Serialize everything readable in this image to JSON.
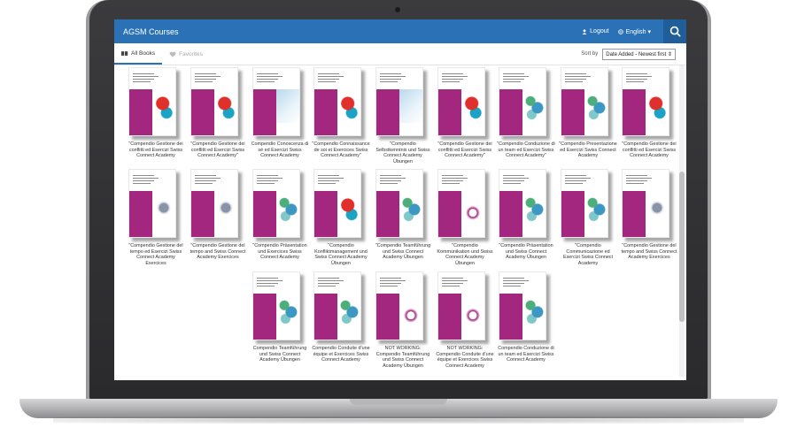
{
  "app": {
    "title": "AGSM Courses"
  },
  "header": {
    "logout_label": "Logout",
    "language_label": "English ▾"
  },
  "tabs": [
    {
      "label": "All Books"
    },
    {
      "label": "Favorites"
    }
  ],
  "sort": {
    "label": "Sort by",
    "selected": "Date Added - Newest first ⇕"
  },
  "books": [
    {
      "title": "\"Compendio Gestione dei conflitti ed Esercizi Swiss Connect Academy",
      "art": "red"
    },
    {
      "title": "\"Compendio Gestione dei conflitti ed Esercizi Swiss Connect Academy\"",
      "art": "red"
    },
    {
      "title": "Compendio Conoscenza di sé ed Esercizi Swiss Connect Academy",
      "art": "blue"
    },
    {
      "title": "\"Compendio Connaissance de soi et Exercices Swiss Connect Academy\"",
      "art": "red"
    },
    {
      "title": "\"Compendio Selbstkenntnis und Swiss Connect Academy Übungen",
      "art": "blue"
    },
    {
      "title": "\"Compendio Gestione dei conflitti ed Esercizi Swiss Connect Academy\"",
      "art": "red"
    },
    {
      "title": "\"Compendio Conduzione di un team ed Esercizi Swiss Connect Academy\"",
      "art": "green"
    },
    {
      "title": "\"Compendio Presentazione ed Esercizi Swiss Connect Academy",
      "art": "green"
    },
    {
      "title": "\"Compendio Gestione dei conflitti ed Esercizi Swiss Connect Academy",
      "art": "red"
    },
    {
      "title": "\"Compendio Gestione del tempo ed Esercizi Swiss Connect Academy Exercices",
      "art": "ball"
    },
    {
      "title": "\"Compendio Gestione del tempo and Swiss Connect Academy Exercices",
      "art": "ball"
    },
    {
      "title": "\"Compendio Präsentation und Exercices Swiss Connect Academy",
      "art": "green"
    },
    {
      "title": "\"Compendio Konfliktmanagement und Swiss Connect Academy Übungen",
      "art": "red"
    },
    {
      "title": "\"Compendio Teamführung und Swiss Connect Academy Übungen",
      "art": "green"
    },
    {
      "title": "\"Compendio Kommunikation und Swiss Connect Academy Übungen",
      "art": "purple"
    },
    {
      "title": "\"Compendio Präsentation und Swiss Connect Academy Übungen",
      "art": "green"
    },
    {
      "title": "\"Compendio Communicazione ed Esercizi Swiss Connect Academy",
      "art": "green"
    },
    {
      "title": "\"Compendio Gestione del tempo and Swiss Connect Academy Exercices",
      "art": "ball"
    },
    {
      "title": "Compendio Teamführung und Swiss Connect Academy Übungen",
      "art": "green"
    },
    {
      "title": "Compendio Conduite d'une équipe et Exercices Swiss Connect Academy",
      "art": "green"
    },
    {
      "title": "NOT WORKING: Compendio Teamführung und Swiss Connect Academy Übungen",
      "art": "purple"
    },
    {
      "title": "NOT WORKING: Compendio Conduite d'une équipe et Exercices Swiss Connect Academy",
      "art": "purple"
    },
    {
      "title": "Compendio Conduzione di un team ed Esercizi Swiss Connect Academy",
      "art": "green"
    }
  ]
}
